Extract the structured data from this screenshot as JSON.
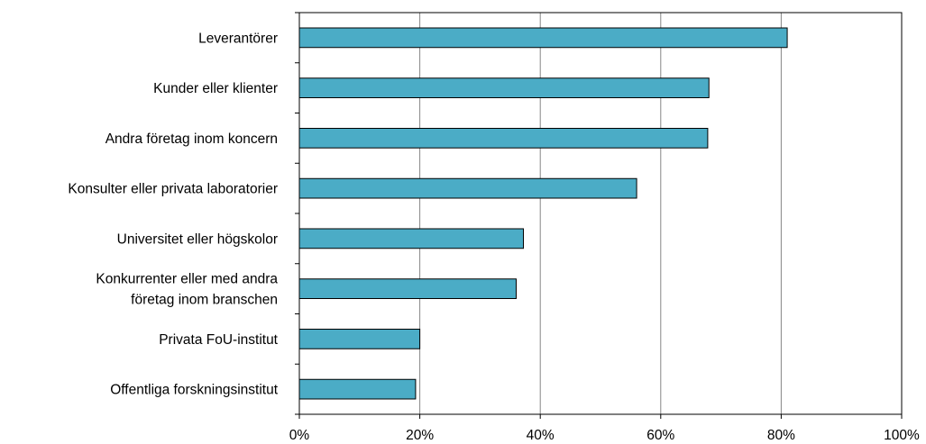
{
  "chart_data": {
    "type": "bar",
    "orientation": "horizontal",
    "categories": [
      [
        "Leverantörer"
      ],
      [
        "Kunder eller klienter"
      ],
      [
        "Andra företag inom koncern"
      ],
      [
        "Konsulter eller privata laboratorier"
      ],
      [
        "Universitet eller högskolor"
      ],
      [
        "Konkurrenter eller med andra",
        "företag inom branschen"
      ],
      [
        "Privata FoU-institut"
      ],
      [
        "Offentliga forskningsinstitut"
      ]
    ],
    "values": [
      81,
      68,
      67.8,
      56,
      37.2,
      36,
      20,
      19.3
    ],
    "xlim": [
      0,
      100
    ],
    "x_ticks": [
      "0%",
      "20%",
      "40%",
      "60%",
      "80%",
      "100%"
    ],
    "grid": "vertical",
    "bar_color": "#4bacc6"
  }
}
